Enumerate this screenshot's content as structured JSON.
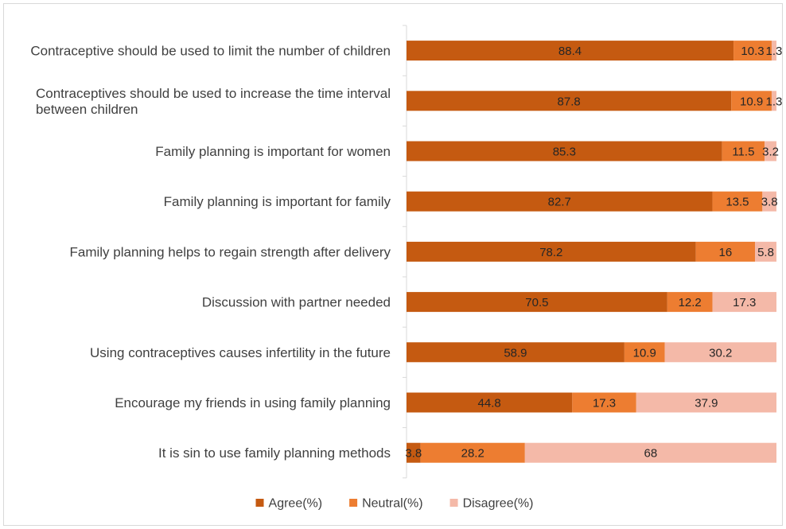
{
  "chart_data": {
    "type": "bar",
    "orientation": "horizontal",
    "stacked": true,
    "categories": [
      "Contraceptive should be used to limit the number of children",
      "Contraceptives should be used to increase the time interval between children",
      "Family planning is important for women",
      "Family planning is important for family",
      "Family planning helps to regain strength after delivery",
      "Discussion with partner needed",
      "Using contraceptives causes infertility in the future",
      "Encourage my friends in using family planning",
      "It is sin to use family planning methods"
    ],
    "series": [
      {
        "name": "Agree(%)",
        "color": "#C55A11",
        "values": [
          88.4,
          87.8,
          85.3,
          82.7,
          78.2,
          70.5,
          58.9,
          44.8,
          3.8
        ]
      },
      {
        "name": "Neutral(%)",
        "color": "#ED7D31",
        "values": [
          10.3,
          10.9,
          11.5,
          13.5,
          16,
          12.2,
          10.9,
          17.3,
          28.2
        ]
      },
      {
        "name": "Disagree(%)",
        "color": "#F4B9A8",
        "values": [
          1.3,
          1.3,
          3.2,
          3.8,
          5.8,
          17.3,
          30.2,
          37.9,
          68
        ]
      }
    ],
    "xlim": [
      0,
      100
    ],
    "grid": false,
    "legend_position": "bottom",
    "title": "",
    "xlabel": "",
    "ylabel": ""
  }
}
